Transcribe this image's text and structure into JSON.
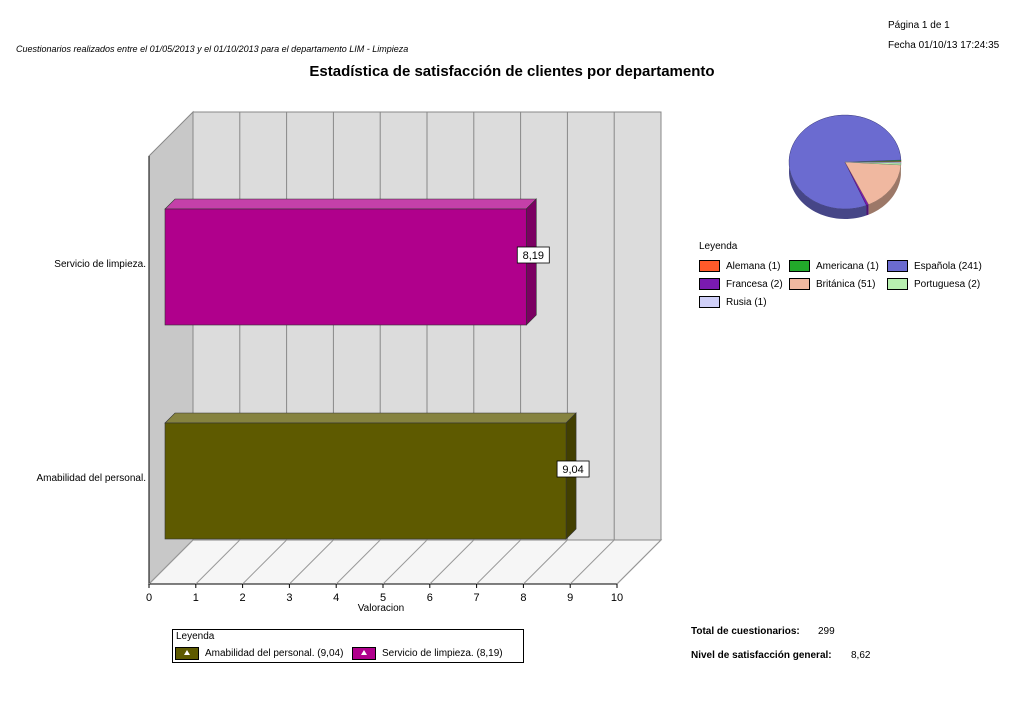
{
  "header": {
    "page_info": "Página 1 de 1",
    "date": "Fecha 01/10/13 17:24:35",
    "subtitle": "Cuestionarios realizados entre el 01/05/2013 y el 01/10/2013 para el departamento LIM - Limpieza",
    "title": "Estadística de satisfacción de clientes por departamento"
  },
  "chart_data": [
    {
      "type": "bar",
      "orientation": "horizontal",
      "categories": [
        "Servicio de limpieza.",
        "Amabilidad del personal."
      ],
      "values": [
        8.19,
        9.04
      ],
      "value_labels": [
        "8,19",
        "9,04"
      ],
      "colors": [
        "#b0008c",
        "#5e5a00"
      ],
      "xlabel": "Valoracion",
      "xlim": [
        0,
        10
      ],
      "xticks": [
        "0",
        "1",
        "2",
        "3",
        "4",
        "5",
        "6",
        "7",
        "8",
        "9",
        "10"
      ],
      "grid": true,
      "legend": {
        "title": "Leyenda",
        "placement": "bottom",
        "items": [
          {
            "label": "Amabilidad del personal. (9,04)",
            "color": "#5e5a00"
          },
          {
            "label": "Servicio de limpieza.  (8,19)",
            "color": "#b0008c"
          }
        ]
      }
    },
    {
      "type": "pie",
      "values": [
        1,
        1,
        241,
        2,
        51,
        2,
        1
      ],
      "legend": {
        "title": "Leyenda",
        "placement": "right",
        "items": [
          {
            "label": "Alemana (1)",
            "color": "#ff5a2a"
          },
          {
            "label": "Americana (1)",
            "color": "#22a82a"
          },
          {
            "label": "Española (241)",
            "color": "#6b6bd0"
          },
          {
            "label": "Francesa (2)",
            "color": "#7a1ab0"
          },
          {
            "label": "Británica (51)",
            "color": "#f0b8a0"
          },
          {
            "label": "Portuguesa (2)",
            "color": "#b8f0b0"
          },
          {
            "label": "Rusia (1)",
            "color": "#d0d0f8"
          }
        ]
      }
    }
  ],
  "summary": {
    "total_label": "Total de cuestionarios:",
    "total_value": "299",
    "level_label": "Nivel de satisfacción general:",
    "level_value": "8,62"
  }
}
